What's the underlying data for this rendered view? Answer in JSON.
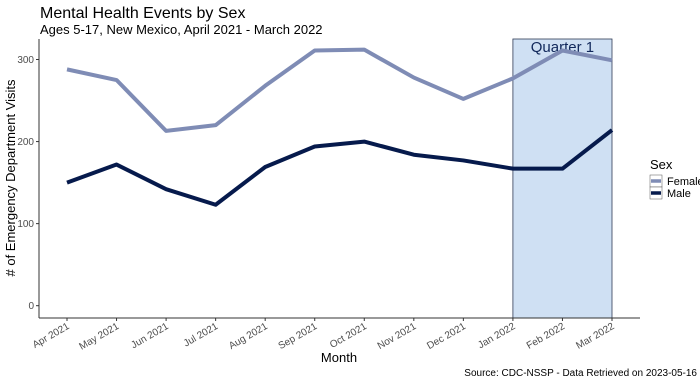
{
  "chart_data": {
    "type": "line",
    "title": "Mental Health Events by Sex",
    "subtitle": "Ages 5-17, New Mexico, April 2021 - March 2022",
    "xlabel": "Month",
    "ylabel": "# of Emergency Department Visits",
    "caption": "Source: CDC-NSSP - Data Retrieved on 2023-05-16",
    "categories": [
      "Apr 2021",
      "May 2021",
      "Jun 2021",
      "Jul 2021",
      "Aug 2021",
      "Sep 2021",
      "Oct 2021",
      "Nov 2021",
      "Dec 2021",
      "Jan 2022",
      "Feb 2022",
      "Mar 2022"
    ],
    "ylim": [
      -15,
      325
    ],
    "yticks": [
      0,
      100,
      200,
      300
    ],
    "grid": false,
    "legend": {
      "title": "Sex",
      "position": "right"
    },
    "series": [
      {
        "name": "Female",
        "color": "#7f8cb5",
        "values": [
          288,
          275,
          213,
          220,
          268,
          311,
          312,
          278,
          252,
          277,
          311,
          299
        ]
      },
      {
        "name": "Male",
        "color": "#061a4c",
        "values": [
          150,
          172,
          142,
          123,
          169,
          194,
          200,
          184,
          177,
          167,
          167,
          214
        ]
      }
    ],
    "highlight": {
      "label": "Quarter 1",
      "from": "Jan 2022",
      "to": "Mar 2022",
      "fill": "#cfe0f3",
      "text_color": "#10275a"
    }
  }
}
